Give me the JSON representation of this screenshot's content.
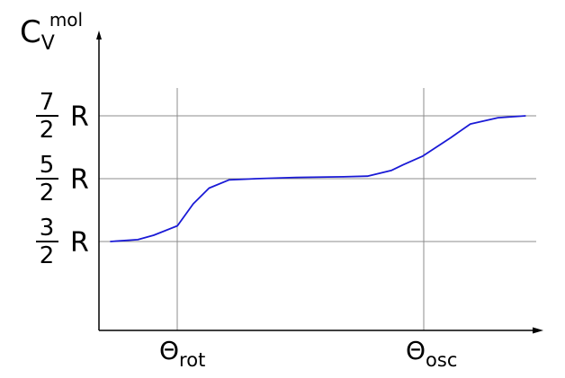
{
  "chart_data": {
    "type": "line",
    "ylabel": {
      "main": "C",
      "subscript": "V",
      "superscript": "mol"
    },
    "yticks": [
      {
        "numerator": "3",
        "denominator": "2",
        "unit": "R",
        "value": 1.5
      },
      {
        "numerator": "5",
        "denominator": "2",
        "unit": "R",
        "value": 2.5
      },
      {
        "numerator": "7",
        "denominator": "2",
        "unit": "R",
        "value": 3.5
      }
    ],
    "xticks": [
      {
        "symbol": "Θ",
        "subscript": "rot",
        "position": 1
      },
      {
        "symbol": "Θ",
        "subscript": "osc",
        "position": 4
      }
    ],
    "grid": true,
    "ylim": [
      0,
      3.5
    ],
    "xlim": [
      0,
      5.3
    ],
    "series": [
      {
        "color": "#1a1ad6",
        "points": [
          [
            0.05,
            1.5
          ],
          [
            0.4,
            1.53
          ],
          [
            0.6,
            1.6
          ],
          [
            0.9,
            1.75
          ],
          [
            1.1,
            2.1
          ],
          [
            1.3,
            2.35
          ],
          [
            1.55,
            2.48
          ],
          [
            1.9,
            2.5
          ],
          [
            2.4,
            2.52
          ],
          [
            3.0,
            2.53
          ],
          [
            3.3,
            2.54
          ],
          [
            3.6,
            2.63
          ],
          [
            3.75,
            2.72
          ],
          [
            4.0,
            2.86
          ],
          [
            4.35,
            3.15
          ],
          [
            4.6,
            3.37
          ],
          [
            4.95,
            3.47
          ],
          [
            5.3,
            3.5
          ]
        ]
      }
    ]
  }
}
